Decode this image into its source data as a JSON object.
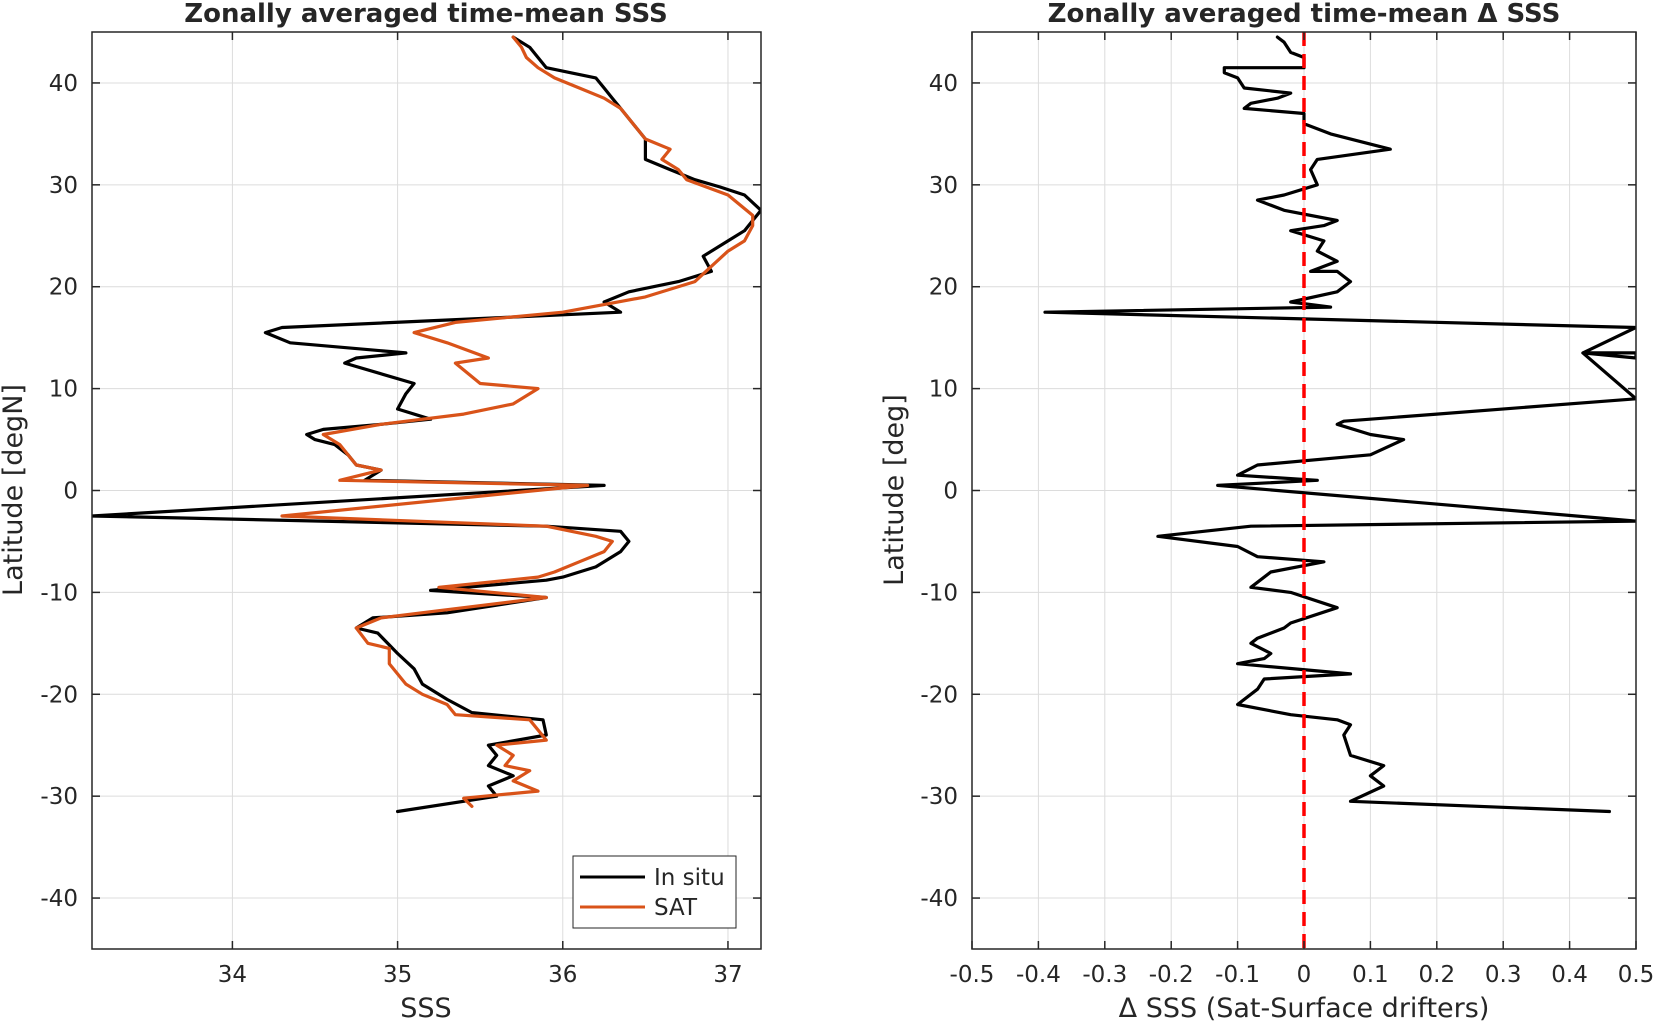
{
  "chart_data": [
    {
      "type": "line",
      "title": "Zonally averaged time-mean SSS",
      "xlabel": "SSS",
      "ylabel": "Latitude [degN]",
      "xlim": [
        33.15,
        37.2
      ],
      "ylim": [
        -45,
        45
      ],
      "xticks": [
        34,
        35,
        36,
        37
      ],
      "yticks": [
        -40,
        -30,
        -20,
        -10,
        0,
        10,
        20,
        30,
        40
      ],
      "grid": true,
      "legend": "bottom-right",
      "series": [
        {
          "name": "In situ",
          "color": "#000000",
          "points": [
            [
              35.0,
              -31.5
            ],
            [
              35.6,
              -30.0
            ],
            [
              35.55,
              -29.0
            ],
            [
              35.7,
              -28.0
            ],
            [
              35.55,
              -27.0
            ],
            [
              35.6,
              -26.0
            ],
            [
              35.55,
              -25.0
            ],
            [
              35.9,
              -24.0
            ],
            [
              35.88,
              -22.5
            ],
            [
              35.45,
              -21.8
            ],
            [
              35.3,
              -20.5
            ],
            [
              35.15,
              -19.0
            ],
            [
              35.1,
              -17.5
            ],
            [
              35.0,
              -16.0
            ],
            [
              34.88,
              -14.0
            ],
            [
              34.75,
              -13.5
            ],
            [
              34.85,
              -12.5
            ],
            [
              35.3,
              -12.0
            ],
            [
              35.9,
              -10.5
            ],
            [
              35.2,
              -9.8
            ],
            [
              35.9,
              -8.8
            ],
            [
              36.0,
              -8.5
            ],
            [
              36.2,
              -7.5
            ],
            [
              36.35,
              -6.0
            ],
            [
              36.4,
              -5.0
            ],
            [
              36.35,
              -4.0
            ],
            [
              35.9,
              -3.5
            ],
            [
              33.15,
              -2.5
            ],
            [
              36.25,
              0.5
            ],
            [
              34.8,
              1.0
            ],
            [
              34.9,
              2.0
            ],
            [
              34.75,
              2.5
            ],
            [
              34.7,
              3.5
            ],
            [
              34.62,
              4.5
            ],
            [
              34.5,
              5.0
            ],
            [
              34.45,
              5.5
            ],
            [
              34.55,
              6.0
            ],
            [
              34.9,
              6.5
            ],
            [
              35.2,
              7.0
            ],
            [
              35.0,
              8.0
            ],
            [
              35.05,
              9.5
            ],
            [
              35.1,
              10.5
            ],
            [
              34.68,
              12.5
            ],
            [
              34.75,
              13.0
            ],
            [
              35.05,
              13.5
            ],
            [
              34.35,
              14.5
            ],
            [
              34.2,
              15.5
            ],
            [
              34.3,
              16.0
            ],
            [
              36.35,
              17.5
            ],
            [
              36.25,
              18.5
            ],
            [
              36.4,
              19.5
            ],
            [
              36.7,
              20.5
            ],
            [
              36.9,
              21.5
            ],
            [
              36.85,
              23.0
            ],
            [
              37.0,
              24.5
            ],
            [
              37.1,
              25.5
            ],
            [
              37.15,
              26.5
            ],
            [
              37.2,
              27.5
            ],
            [
              37.1,
              29.0
            ],
            [
              36.95,
              29.8
            ],
            [
              36.8,
              30.5
            ],
            [
              36.65,
              31.5
            ],
            [
              36.5,
              32.5
            ],
            [
              36.5,
              33.5
            ],
            [
              36.5,
              34.5
            ],
            [
              36.45,
              35.5
            ],
            [
              36.4,
              36.5
            ],
            [
              36.35,
              37.5
            ],
            [
              36.3,
              38.5
            ],
            [
              36.25,
              39.5
            ],
            [
              36.2,
              40.5
            ],
            [
              36.05,
              41.0
            ],
            [
              35.9,
              41.5
            ],
            [
              35.85,
              42.5
            ],
            [
              35.8,
              43.5
            ],
            [
              35.7,
              44.5
            ]
          ]
        },
        {
          "name": "SAT",
          "color": "#d95319",
          "points": [
            [
              35.45,
              -31.0
            ],
            [
              35.4,
              -30.2
            ],
            [
              35.85,
              -29.5
            ],
            [
              35.7,
              -28.5
            ],
            [
              35.8,
              -27.5
            ],
            [
              35.65,
              -27.0
            ],
            [
              35.7,
              -26.0
            ],
            [
              35.6,
              -25.0
            ],
            [
              35.9,
              -24.5
            ],
            [
              35.8,
              -22.5
            ],
            [
              35.35,
              -22.0
            ],
            [
              35.3,
              -21.0
            ],
            [
              35.15,
              -20.0
            ],
            [
              35.05,
              -19.0
            ],
            [
              34.95,
              -17.0
            ],
            [
              34.95,
              -15.5
            ],
            [
              34.82,
              -15.0
            ],
            [
              34.75,
              -13.5
            ],
            [
              34.9,
              -12.5
            ],
            [
              35.25,
              -11.8
            ],
            [
              35.9,
              -10.5
            ],
            [
              35.25,
              -9.5
            ],
            [
              35.85,
              -8.5
            ],
            [
              35.95,
              -8.0
            ],
            [
              36.1,
              -7.0
            ],
            [
              36.25,
              -6.0
            ],
            [
              36.3,
              -5.0
            ],
            [
              36.2,
              -4.5
            ],
            [
              35.9,
              -3.5
            ],
            [
              34.3,
              -2.5
            ],
            [
              36.15,
              0.5
            ],
            [
              34.65,
              1.0
            ],
            [
              34.9,
              2.0
            ],
            [
              34.75,
              2.5
            ],
            [
              34.7,
              3.5
            ],
            [
              34.65,
              4.5
            ],
            [
              34.55,
              5.5
            ],
            [
              34.9,
              6.5
            ],
            [
              35.4,
              7.5
            ],
            [
              35.7,
              8.5
            ],
            [
              35.85,
              10.0
            ],
            [
              35.5,
              10.5
            ],
            [
              35.35,
              12.5
            ],
            [
              35.55,
              13.0
            ],
            [
              35.3,
              14.5
            ],
            [
              35.1,
              15.5
            ],
            [
              35.35,
              16.5
            ],
            [
              36.0,
              17.5
            ],
            [
              36.5,
              19.0
            ],
            [
              36.8,
              20.5
            ],
            [
              36.9,
              22.0
            ],
            [
              37.0,
              23.5
            ],
            [
              37.1,
              24.5
            ],
            [
              37.15,
              26.0
            ],
            [
              37.15,
              27.0
            ],
            [
              37.0,
              29.0
            ],
            [
              36.75,
              30.5
            ],
            [
              36.7,
              31.5
            ],
            [
              36.6,
              32.5
            ],
            [
              36.65,
              33.5
            ],
            [
              36.5,
              34.5
            ],
            [
              36.45,
              35.5
            ],
            [
              36.4,
              36.5
            ],
            [
              36.35,
              37.5
            ],
            [
              36.25,
              38.5
            ],
            [
              36.1,
              39.5
            ],
            [
              35.95,
              40.5
            ],
            [
              35.85,
              41.5
            ],
            [
              35.78,
              42.5
            ],
            [
              35.75,
              43.5
            ],
            [
              35.7,
              44.5
            ]
          ]
        }
      ]
    },
    {
      "type": "line",
      "title": "Zonally averaged time-mean Δ SSS",
      "xlabel": "Δ SSS (Sat-Surface drifters)",
      "ylabel": "Latitude [deg]",
      "xlim": [
        -0.5,
        0.5
      ],
      "ylim": [
        -45,
        45
      ],
      "xticks": [
        -0.5,
        -0.4,
        -0.3,
        -0.2,
        -0.1,
        0,
        0.1,
        0.2,
        0.3,
        0.4,
        0.5
      ],
      "xtick_labels": [
        "-0.5",
        "-0.4",
        "-0.3",
        "-0.2",
        "-0.1",
        "0",
        "0.1",
        "0.2",
        "0.3",
        "0.4",
        "0.5"
      ],
      "yticks": [
        -40,
        -30,
        -20,
        -10,
        0,
        10,
        20,
        30,
        40
      ],
      "grid": true,
      "reference_line": {
        "x": 0,
        "color": "#ff0000",
        "style": "dashed"
      },
      "series": [
        {
          "color": "#000000",
          "points": [
            [
              0.46,
              -31.5
            ],
            [
              0.07,
              -30.5
            ],
            [
              0.12,
              -29.0
            ],
            [
              0.1,
              -28.0
            ],
            [
              0.12,
              -27.0
            ],
            [
              0.07,
              -26.0
            ],
            [
              0.06,
              -24.0
            ],
            [
              0.07,
              -23.0
            ],
            [
              0.05,
              -22.5
            ],
            [
              -0.02,
              -22.0
            ],
            [
              -0.1,
              -21.0
            ],
            [
              -0.07,
              -19.5
            ],
            [
              -0.06,
              -18.5
            ],
            [
              0.07,
              -18.0
            ],
            [
              -0.1,
              -17.0
            ],
            [
              -0.06,
              -16.5
            ],
            [
              -0.05,
              -16.0
            ],
            [
              -0.08,
              -15.0
            ],
            [
              -0.07,
              -14.5
            ],
            [
              -0.05,
              -14.0
            ],
            [
              -0.03,
              -13.5
            ],
            [
              -0.02,
              -13.0
            ],
            [
              0.05,
              -11.5
            ],
            [
              -0.02,
              -10.0
            ],
            [
              -0.08,
              -9.5
            ],
            [
              -0.05,
              -8.0
            ],
            [
              0.03,
              -7.0
            ],
            [
              -0.07,
              -6.5
            ],
            [
              -0.1,
              -5.5
            ],
            [
              -0.22,
              -4.5
            ],
            [
              -0.08,
              -3.5
            ],
            [
              0.5,
              -3.0
            ],
            [
              -0.13,
              0.5
            ],
            [
              0.02,
              1.0
            ],
            [
              -0.1,
              1.5
            ],
            [
              -0.07,
              2.5
            ],
            [
              0.1,
              3.5
            ],
            [
              0.15,
              5.0
            ],
            [
              0.1,
              5.5
            ],
            [
              0.05,
              6.5
            ],
            [
              0.06,
              6.8
            ],
            [
              0.2,
              7.5
            ],
            [
              0.5,
              9.0
            ],
            [
              0.42,
              13.5
            ],
            [
              0.5,
              13.5
            ],
            [
              0.5,
              13.0
            ],
            [
              0.42,
              13.5
            ],
            [
              0.5,
              16.0
            ],
            [
              -0.39,
              17.5
            ],
            [
              0.04,
              18.0
            ],
            [
              -0.02,
              18.5
            ],
            [
              0.05,
              19.5
            ],
            [
              0.07,
              20.5
            ],
            [
              0.05,
              21.5
            ],
            [
              0.01,
              21.5
            ],
            [
              0.05,
              22.5
            ],
            [
              0.02,
              23.5
            ],
            [
              0.03,
              24.5
            ],
            [
              -0.02,
              25.5
            ],
            [
              0.03,
              26.0
            ],
            [
              0.05,
              26.5
            ],
            [
              -0.03,
              27.5
            ],
            [
              -0.07,
              28.5
            ],
            [
              -0.03,
              29.0
            ],
            [
              0.02,
              30.0
            ],
            [
              0.01,
              31.5
            ],
            [
              0.02,
              32.5
            ],
            [
              0.13,
              33.5
            ],
            [
              0.04,
              35.0
            ],
            [
              0.0,
              36.0
            ],
            [
              0.0,
              37.0
            ],
            [
              -0.09,
              37.5
            ],
            [
              -0.08,
              38.0
            ],
            [
              -0.04,
              38.5
            ],
            [
              -0.02,
              39.0
            ],
            [
              -0.09,
              39.5
            ],
            [
              -0.1,
              40.5
            ],
            [
              -0.12,
              41.0
            ],
            [
              -0.12,
              41.5
            ],
            [
              0.0,
              41.5
            ],
            [
              0.0,
              42.5
            ],
            [
              -0.02,
              43.0
            ],
            [
              -0.03,
              44.0
            ],
            [
              -0.04,
              44.5
            ]
          ]
        }
      ]
    }
  ]
}
